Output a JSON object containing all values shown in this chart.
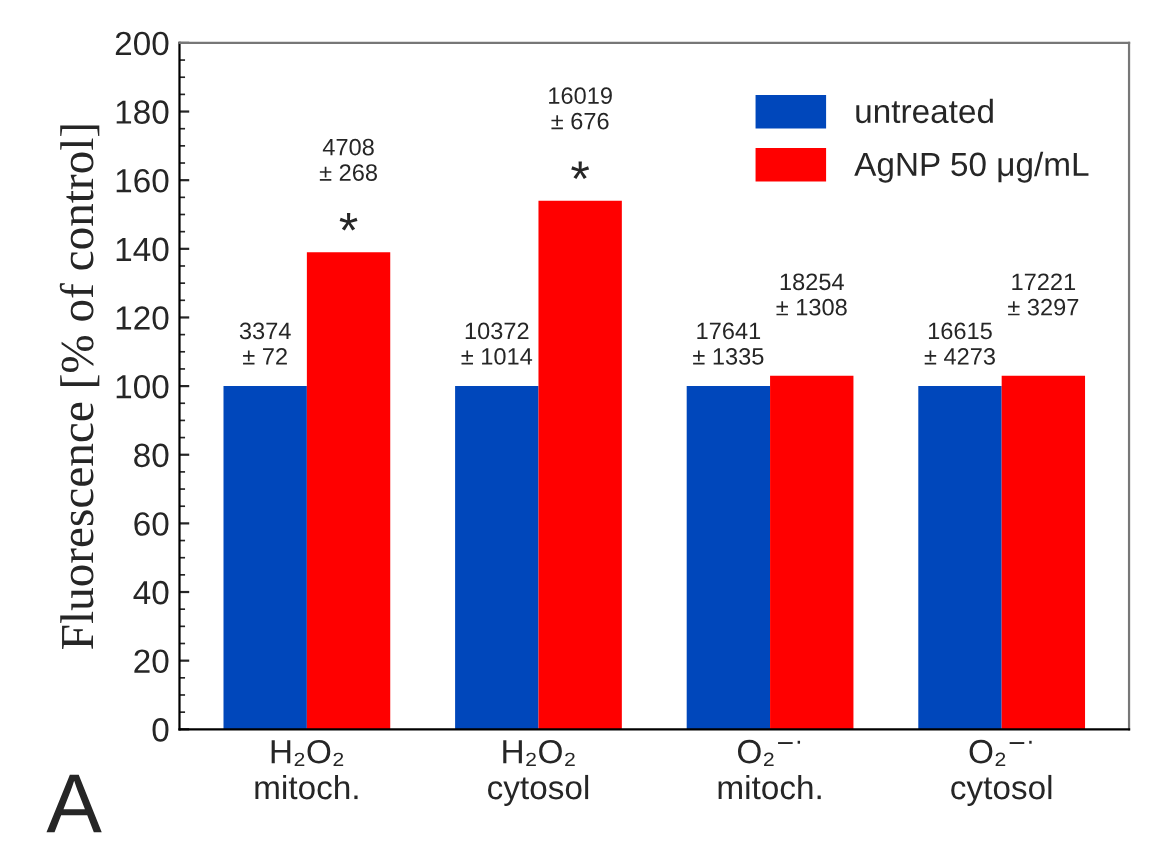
{
  "chart_data": {
    "type": "bar",
    "categories": [
      "H₂O₂\nmitoch.",
      "H₂O₂\ncytosol",
      "O₂$^{−·}$\nmitoch.",
      "O₂$^{−·}$\ncytosol"
    ],
    "ylabel": "Fluorescence [% of control]",
    "series": [
      {
        "name": "untreated",
        "color": "#0047bb",
        "values": [
          100,
          100,
          100,
          100
        ]
      },
      {
        "name": "AgNP 50 μg/mL",
        "color": "#ff0000",
        "values": [
          139,
          154,
          103,
          103
        ]
      }
    ],
    "ylim": [
      0,
      200
    ],
    "yticks": [
      0,
      20,
      40,
      60,
      80,
      100,
      120,
      140,
      160,
      180,
      200
    ],
    "annotations": [
      {
        "text": "3374\n± 72",
        "x": "H₂O₂\nmitoch.",
        "y": 100
      },
      {
        "text": "10372\n± 1014",
        "x": "H₂O₂\ncytosol",
        "y": 100
      },
      {
        "text": "17641\n± 1335",
        "x": "O₂$^{−·}$\nmitoch.",
        "y": 100
      },
      {
        "text": "16615\n± 4273",
        "x": "O₂$^{−·}$\ncytosol",
        "y": 100
      },
      "4708\n± 268",
      "16019\n± 676",
      {
        "text": "18254\n± 1308",
        "x": "O₂$^{−·}$\nmitoch.",
        "y": 103
      },
      {
        "text": "17221\n± 3297",
        "x": "O₂$^{−·}$\ncytosol",
        "y": 103
      },
      {
        "text": "*",
        "x": "H₂O₂\nmitoch.",
        "y": 139
      },
      {
        "text": "*",
        "x": "H₂O₂\ncytosol",
        "y": 154
      },
      "A"
    ],
    "legend": "top right",
    "grid": false
  }
}
